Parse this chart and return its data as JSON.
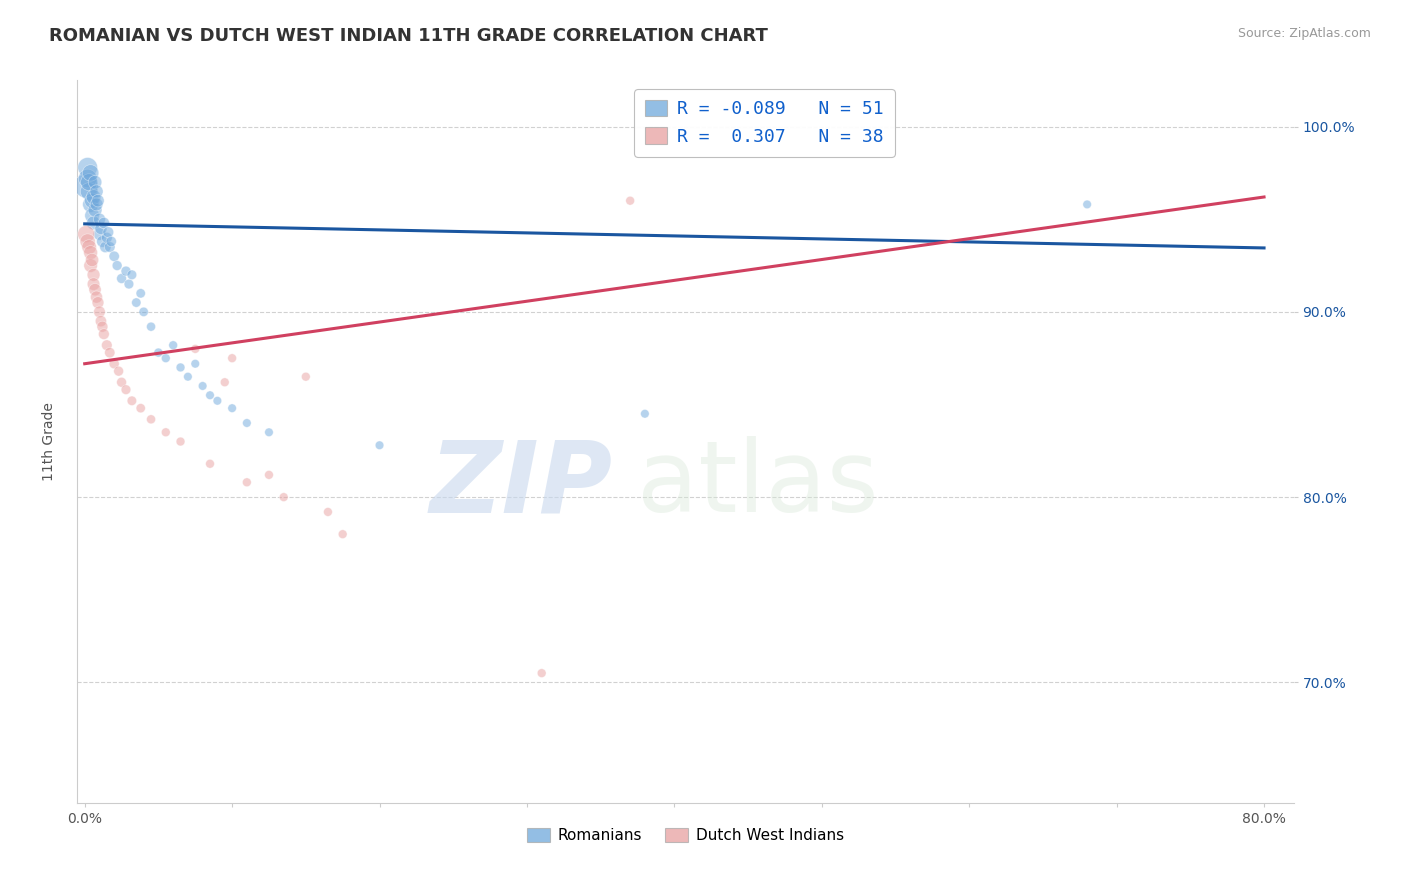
{
  "title": "ROMANIAN VS DUTCH WEST INDIAN 11TH GRADE CORRELATION CHART",
  "source": "Source: ZipAtlas.com",
  "ylabel": "11th Grade",
  "xlim": [
    -0.005,
    0.82
  ],
  "ylim": [
    0.635,
    1.025
  ],
  "xticks": [
    0.0,
    0.1,
    0.2,
    0.3,
    0.4,
    0.5,
    0.6,
    0.7,
    0.8
  ],
  "xtick_labels": [
    "0.0%",
    "",
    "",
    "",
    "",
    "",
    "",
    "",
    "80.0%"
  ],
  "ytick_positions": [
    0.7,
    0.8,
    0.9,
    1.0
  ],
  "ytick_labels": [
    "70.0%",
    "80.0%",
    "90.0%",
    "100.0%"
  ],
  "blue_R": -0.089,
  "blue_N": 51,
  "pink_R": 0.307,
  "pink_N": 38,
  "blue_color": "#6fa8dc",
  "pink_color": "#e8a0a0",
  "blue_line_color": "#1a56a0",
  "pink_line_color": "#d04060",
  "blue_label": "Romanians",
  "pink_label": "Dutch West Indians",
  "blue_x": [
    0.001,
    0.002,
    0.002,
    0.003,
    0.003,
    0.004,
    0.004,
    0.005,
    0.005,
    0.006,
    0.006,
    0.007,
    0.007,
    0.008,
    0.008,
    0.009,
    0.01,
    0.01,
    0.011,
    0.012,
    0.013,
    0.014,
    0.015,
    0.016,
    0.017,
    0.018,
    0.02,
    0.022,
    0.025,
    0.028,
    0.03,
    0.032,
    0.035,
    0.038,
    0.04,
    0.045,
    0.05,
    0.055,
    0.06,
    0.065,
    0.07,
    0.075,
    0.08,
    0.085,
    0.09,
    0.1,
    0.11,
    0.125,
    0.2,
    0.38,
    0.68
  ],
  "blue_y": [
    0.968,
    0.978,
    0.972,
    0.965,
    0.97,
    0.975,
    0.958,
    0.96,
    0.952,
    0.962,
    0.948,
    0.955,
    0.97,
    0.965,
    0.958,
    0.96,
    0.942,
    0.95,
    0.945,
    0.938,
    0.948,
    0.935,
    0.94,
    0.943,
    0.935,
    0.938,
    0.93,
    0.925,
    0.918,
    0.922,
    0.915,
    0.92,
    0.905,
    0.91,
    0.9,
    0.892,
    0.878,
    0.875,
    0.882,
    0.87,
    0.865,
    0.872,
    0.86,
    0.855,
    0.852,
    0.848,
    0.84,
    0.835,
    0.828,
    0.845,
    0.958
  ],
  "blue_sizes": [
    300,
    200,
    180,
    160,
    150,
    140,
    130,
    120,
    110,
    110,
    100,
    100,
    95,
    90,
    85,
    80,
    80,
    75,
    75,
    70,
    65,
    65,
    60,
    60,
    58,
    55,
    55,
    50,
    50,
    50,
    48,
    48,
    45,
    45,
    45,
    42,
    42,
    40,
    40,
    40,
    38,
    38,
    38,
    38,
    38,
    38,
    38,
    38,
    38,
    38,
    38
  ],
  "pink_x": [
    0.001,
    0.002,
    0.003,
    0.004,
    0.004,
    0.005,
    0.006,
    0.006,
    0.007,
    0.008,
    0.009,
    0.01,
    0.011,
    0.012,
    0.013,
    0.015,
    0.017,
    0.02,
    0.023,
    0.025,
    0.028,
    0.032,
    0.038,
    0.045,
    0.055,
    0.065,
    0.085,
    0.11,
    0.135,
    0.165,
    0.15,
    0.175,
    0.125,
    0.095,
    0.37,
    0.31,
    0.1,
    0.075
  ],
  "pink_y": [
    0.942,
    0.938,
    0.935,
    0.932,
    0.925,
    0.928,
    0.92,
    0.915,
    0.912,
    0.908,
    0.905,
    0.9,
    0.895,
    0.892,
    0.888,
    0.882,
    0.878,
    0.872,
    0.868,
    0.862,
    0.858,
    0.852,
    0.848,
    0.842,
    0.835,
    0.83,
    0.818,
    0.808,
    0.8,
    0.792,
    0.865,
    0.78,
    0.812,
    0.862,
    0.96,
    0.705,
    0.875,
    0.88
  ],
  "pink_sizes": [
    150,
    120,
    110,
    100,
    95,
    90,
    85,
    82,
    78,
    75,
    72,
    70,
    65,
    62,
    60,
    58,
    55,
    52,
    50,
    50,
    48,
    46,
    44,
    42,
    40,
    40,
    40,
    40,
    40,
    40,
    40,
    40,
    40,
    40,
    40,
    40,
    40,
    40
  ],
  "watermark_zip": "ZIP",
  "watermark_atlas": "atlas",
  "grid_color": "#cccccc",
  "background_color": "#ffffff",
  "blue_trend": [
    0.0,
    0.8,
    0.9475,
    0.9345
  ],
  "pink_trend": [
    0.0,
    0.8,
    0.872,
    0.962
  ]
}
